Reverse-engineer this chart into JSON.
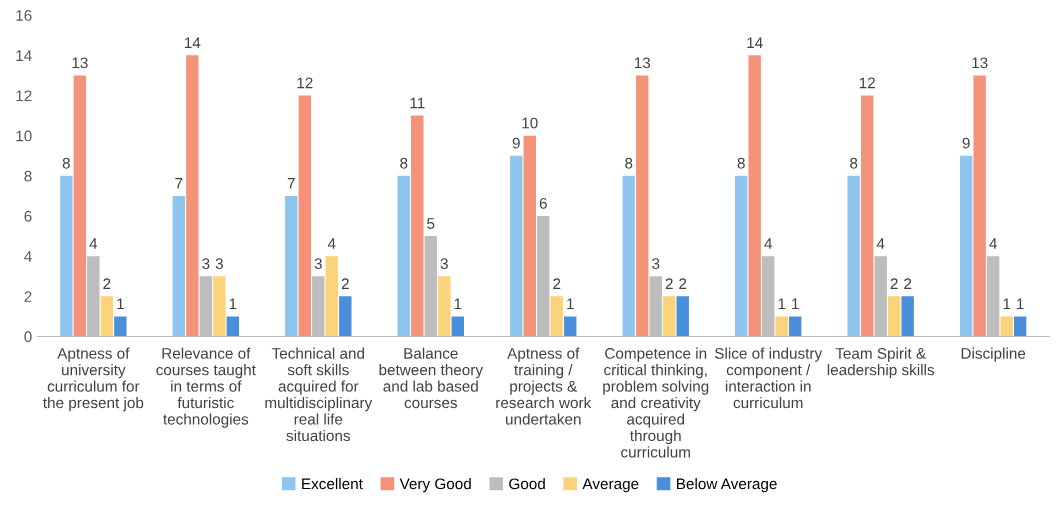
{
  "chart_data": {
    "type": "bar",
    "categories": [
      "Aptness of\nuniversity\ncurriculum for\nthe present job",
      "Relevance of\ncourses taught\nin terms of\nfuturistic\ntechnologies",
      "Technical and\nsoft skills\nacquired for\nmultidisciplinary\nreal life\nsituations",
      "Balance\nbetween theory\nand lab based\ncourses",
      "Aptness of\ntraining /\nprojects &\nresearch work\nundertaken",
      "Competence in\ncritical thinking,\nproblem solving\nand creativity\nacquired\nthrough\ncurriculum",
      "Slice of industry\ncomponent /\ninteraction in\ncurriculum",
      "Team Spirit &\nleadership skills",
      "Discipline"
    ],
    "series": [
      {
        "name": "Excellent",
        "color": "#8ec5ee",
        "values": [
          8,
          7,
          7,
          8,
          9,
          8,
          8,
          8,
          9
        ]
      },
      {
        "name": "Very Good",
        "color": "#f5937a",
        "values": [
          13,
          14,
          12,
          11,
          10,
          13,
          14,
          12,
          13
        ]
      },
      {
        "name": "Good",
        "color": "#bdbdbd",
        "values": [
          4,
          3,
          3,
          5,
          6,
          3,
          4,
          4,
          4
        ]
      },
      {
        "name": "Average",
        "color": "#fbd37a",
        "values": [
          2,
          3,
          4,
          3,
          2,
          2,
          1,
          2,
          1
        ]
      },
      {
        "name": "Below Average",
        "color": "#4b8fdb",
        "values": [
          1,
          1,
          2,
          1,
          1,
          2,
          1,
          2,
          1
        ]
      }
    ],
    "ylim": [
      0,
      16
    ],
    "yticks": [
      0,
      2,
      4,
      6,
      8,
      10,
      12,
      14,
      16
    ],
    "grid": false,
    "legend": "bottom",
    "data_labels": true
  }
}
